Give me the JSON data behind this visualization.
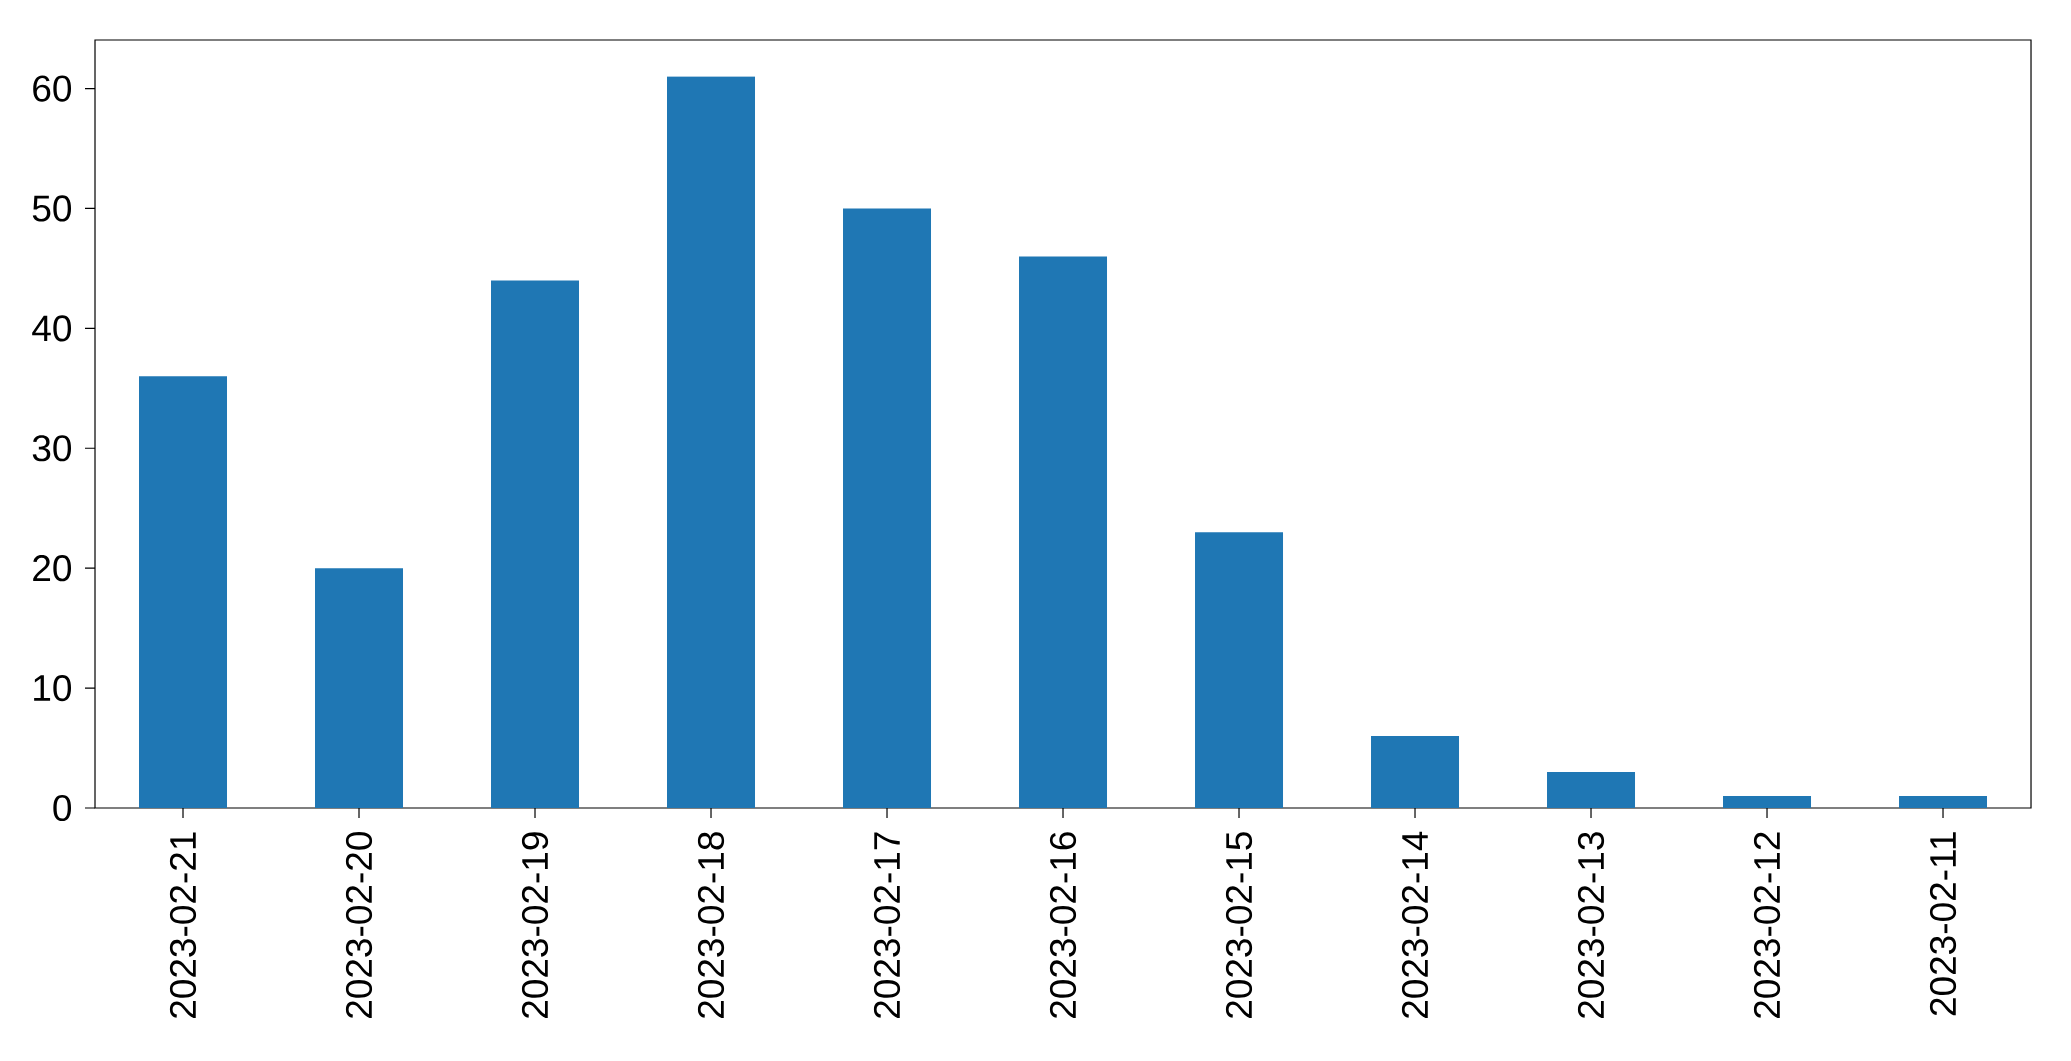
{
  "chart_data": {
    "type": "bar",
    "categories": [
      "2023-02-21",
      "2023-02-20",
      "2023-02-19",
      "2023-02-18",
      "2023-02-17",
      "2023-02-16",
      "2023-02-15",
      "2023-02-14",
      "2023-02-13",
      "2023-02-12",
      "2023-02-11"
    ],
    "values": [
      36,
      20,
      44,
      61,
      50,
      46,
      23,
      6,
      3,
      1,
      1
    ],
    "color": "#1f77b4",
    "ylim": [
      0,
      64.05
    ],
    "yticks": [
      0,
      10,
      20,
      30,
      40,
      50,
      60
    ]
  }
}
